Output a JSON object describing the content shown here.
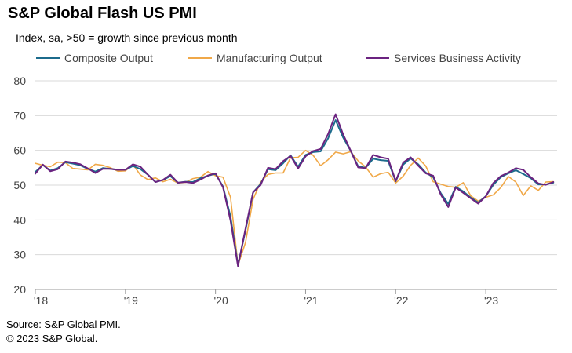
{
  "header": {
    "title": "S&P Global Flash US PMI",
    "subtitle": "Index, sa, >50 = growth since previous month"
  },
  "footer": {
    "source": "Source: S&P Global PMI.",
    "copyright": "© 2023 S&P Global."
  },
  "colors": {
    "composite": "#1c6b8c",
    "manufacturing": "#f0a848",
    "services": "#6b2380",
    "grid": "#d9d9d9",
    "axis": "#999999"
  },
  "chart_data": {
    "type": "line",
    "title": "S&P Global Flash US PMI",
    "subtitle": "Index, sa, >50 = growth since previous month",
    "ylim": [
      20,
      80
    ],
    "yticks": [
      20,
      30,
      40,
      50,
      60,
      70,
      80
    ],
    "xticks": [
      "'18",
      "'19",
      "'20",
      "'21",
      "'22",
      "'23"
    ],
    "x_start": "2018-01",
    "x_end": "2023-10",
    "grid": true,
    "legend_position": "top",
    "series": [
      {
        "name": "Composite Output",
        "color_key": "composite",
        "values": [
          53.8,
          55.8,
          54.2,
          54.9,
          56.6,
          56.2,
          55.7,
          54.7,
          53.9,
          54.9,
          54.7,
          54.4,
          54.4,
          55.5,
          54.6,
          53.0,
          50.9,
          51.5,
          52.6,
          50.7,
          51.0,
          50.9,
          52.0,
          52.7,
          53.3,
          49.6,
          40.9,
          27.0,
          37.0,
          47.9,
          50.3,
          54.6,
          54.3,
          56.3,
          58.6,
          55.3,
          58.7,
          59.5,
          59.7,
          63.5,
          68.7,
          63.7,
          59.9,
          55.4,
          55.0,
          57.6,
          57.2,
          57.0,
          51.1,
          55.9,
          57.7,
          56.0,
          53.6,
          52.3,
          47.7,
          44.6,
          49.5,
          48.2,
          46.4,
          45.0,
          46.8,
          50.1,
          52.3,
          53.4,
          54.3,
          53.2,
          52.0,
          50.2,
          50.2,
          50.7
        ]
      },
      {
        "name": "Manufacturing Output",
        "color_key": "manufacturing",
        "values": [
          56.3,
          55.7,
          55.3,
          56.6,
          56.5,
          54.8,
          54.6,
          54.4,
          56.0,
          55.7,
          55.0,
          54.0,
          54.1,
          55.9,
          52.9,
          51.6,
          52.1,
          51.0,
          51.7,
          50.6,
          50.8,
          51.9,
          52.3,
          53.9,
          52.7,
          52.3,
          46.5,
          27.0,
          33.5,
          45.9,
          50.9,
          53.1,
          53.5,
          53.5,
          57.9,
          58.0,
          60.0,
          58.6,
          55.6,
          57.3,
          59.5,
          59.0,
          59.6,
          57.0,
          55.2,
          52.3,
          53.3,
          53.7,
          50.6,
          52.6,
          55.7,
          57.8,
          55.5,
          51.0,
          50.3,
          49.6,
          49.4,
          50.7,
          46.9,
          45.4,
          46.5,
          47.2,
          49.3,
          52.5,
          50.9,
          47.0,
          49.8,
          48.5,
          50.9,
          51.0
        ]
      },
      {
        "name": "Services Business Activity",
        "color_key": "services",
        "values": [
          53.3,
          55.9,
          54.0,
          54.6,
          56.8,
          56.5,
          56.0,
          54.8,
          53.5,
          54.7,
          54.7,
          54.4,
          54.4,
          56.0,
          55.3,
          53.0,
          50.9,
          51.5,
          53.0,
          50.7,
          50.9,
          50.6,
          51.6,
          52.8,
          53.4,
          49.4,
          39.8,
          26.7,
          37.5,
          47.9,
          50.0,
          55.0,
          54.6,
          56.9,
          58.4,
          54.8,
          58.3,
          59.8,
          60.4,
          64.7,
          70.4,
          64.6,
          59.9,
          55.1,
          54.9,
          58.7,
          58.0,
          57.6,
          51.2,
          56.5,
          58.0,
          55.6,
          53.4,
          52.7,
          47.3,
          43.7,
          49.3,
          47.8,
          46.2,
          44.7,
          46.8,
          50.6,
          52.6,
          53.6,
          54.9,
          54.4,
          52.3,
          50.5,
          50.1,
          50.9
        ]
      }
    ]
  }
}
